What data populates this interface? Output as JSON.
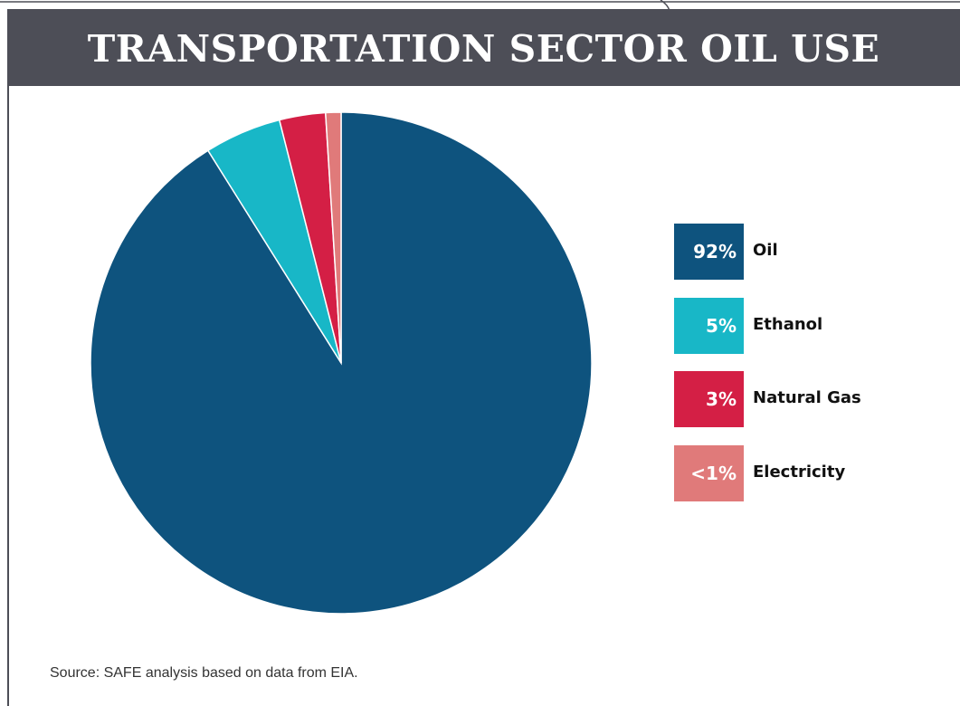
{
  "chart_data": {
    "type": "pie",
    "title": "TRANSPORTATION SECTOR OIL USE",
    "slices": [
      {
        "label": "Oil",
        "value": 92,
        "display": "92%",
        "color": "#0e537e"
      },
      {
        "label": "Ethanol",
        "value": 5,
        "display": "5%",
        "color": "#18b7c7"
      },
      {
        "label": "Natural Gas",
        "value": 3,
        "display": "3%",
        "color": "#d41f45"
      },
      {
        "label": "Electricity",
        "value": 1,
        "display": "<1%",
        "color": "#e07a7a"
      }
    ],
    "legend_position": "right"
  },
  "source": "Source: SAFE analysis based on data from EIA."
}
